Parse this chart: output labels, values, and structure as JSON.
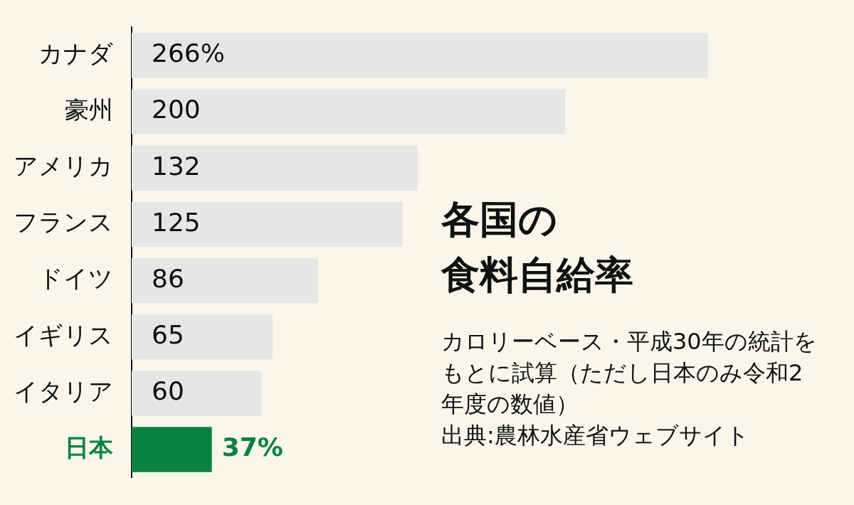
{
  "chart_data": {
    "type": "bar",
    "orientation": "horizontal",
    "title": "各国の",
    "subtitle": "食料自給率",
    "annotations": [
      "カロリーベース・平成30年の統計をもとに試算（ただし日本のみ令和2年度の数値）",
      "出典:農林水産省ウェブサイト"
    ],
    "categories": [
      "カナダ",
      "豪州",
      "アメリカ",
      "フランス",
      "ドイツ",
      "イギリス",
      "イタリア",
      "日本"
    ],
    "values": [
      266,
      200,
      132,
      125,
      86,
      65,
      60,
      37
    ],
    "colors": [
      "#e6e6e6",
      "#e6e6e6",
      "#e6e6e6",
      "#e6e6e6",
      "#e6e6e6",
      "#e6e6e6",
      "#e6e6e6",
      "#0b8140"
    ],
    "value_labels": [
      "266%",
      "200",
      "132",
      "125",
      "86",
      "65",
      "60",
      "37%"
    ],
    "legend": false
  }
}
